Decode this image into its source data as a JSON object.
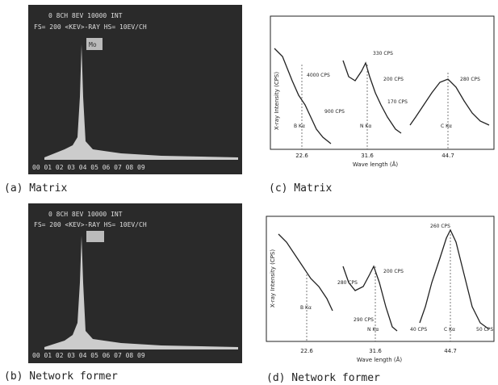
{
  "panels": [
    {
      "caption": "(a) Matrix",
      "header": [
        "0   8CH      8EV      10000 INT",
        "FS= 200   <KEV>-RAY   HS= 10EV/CH"
      ],
      "label": "Mo",
      "axis": "00 01 02 03 04 05 06 07 08 09"
    },
    {
      "caption": "(c) Matrix",
      "y_label": "X-ray Intensity (CPS)",
      "x_label": "Wave length (Å)",
      "x_ticks": [
        "22.6",
        "31.6",
        "44.7"
      ],
      "lines": [
        "B Kα",
        "N Kα",
        "C Kα"
      ],
      "annotations": [
        "4000 CPS",
        "900 CPS",
        "330 CPS",
        "200 CPS",
        "170 CPS",
        "280 CPS"
      ]
    },
    {
      "caption": "(b) Network former",
      "header": [
        "0   8CH      8EV      10000 INT",
        "FS= 200   <KEV>-RAY   HS= 10EV/CH"
      ],
      "axis": "00 01 02 03 04 05 06 07 08 09"
    },
    {
      "caption": "(d) Network former",
      "y_label": "X-ray Intensity (CPS)",
      "x_label": "Wave length (Å)",
      "x_ticks": [
        "22.6",
        "31.6",
        "44.7"
      ],
      "lines": [
        "B Kα",
        "N Kα",
        "C Kα"
      ],
      "annotations": [
        "260 CPS",
        "200 CPS",
        "280 CPS",
        "290 CPS",
        "40 CPS",
        "50 CPS"
      ]
    }
  ]
}
